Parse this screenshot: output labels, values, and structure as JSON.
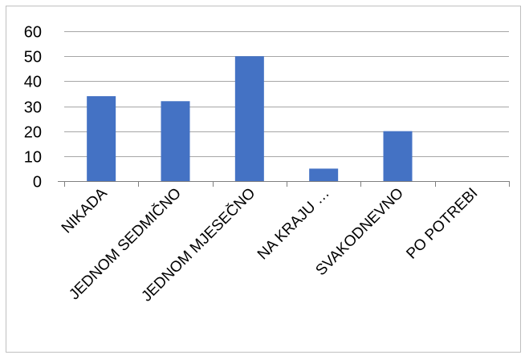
{
  "chart_data": {
    "type": "bar",
    "categories": [
      "NIKADA",
      "JEDNOM SEDMIČNO",
      "JEDNOM MJESEČNO",
      "NA KRAJU …",
      "SVAKODNEVNO",
      "PO POTREBI"
    ],
    "values": [
      34,
      32,
      50,
      5,
      20,
      0
    ],
    "ylim": [
      0,
      60
    ],
    "yticks": [
      0,
      10,
      20,
      30,
      40,
      50,
      60
    ],
    "grid": true,
    "legend": "none",
    "title": "",
    "xlabel": "",
    "ylabel": "",
    "colors": {
      "bar": "#4472c4",
      "grid": "#a6a6a6",
      "axis": "#7f7f7f"
    }
  }
}
